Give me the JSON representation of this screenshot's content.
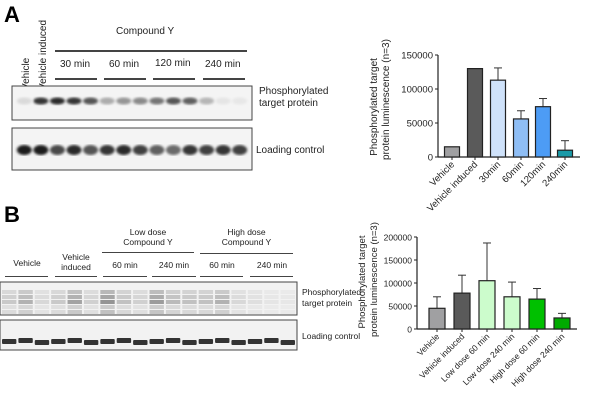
{
  "panel_a": {
    "letter": "A",
    "lane_labels": [
      "Vehicle",
      "Vehicle induced"
    ],
    "group_label": "Compound Y",
    "time_labels": [
      "30 min",
      "60 min",
      "120 min",
      "240 min"
    ],
    "blot_labels": [
      "Phosphorylated",
      "target protein",
      "Loading control"
    ],
    "phospho_band_intensity": [
      0.08,
      0.85,
      0.9,
      0.85,
      0.7,
      0.3,
      0.4,
      0.45,
      0.55,
      0.7,
      0.65,
      0.25,
      0.03,
      0.02
    ],
    "loading_band_intensity": [
      0.95,
      0.95,
      0.75,
      0.9,
      0.7,
      0.85,
      0.9,
      0.8,
      0.65,
      0.6,
      0.85,
      0.8,
      0.85,
      0.8
    ]
  },
  "panel_b": {
    "letter": "B",
    "lane_labels": [
      "Vehicle",
      "Vehicle",
      "induced"
    ],
    "groups": [
      [
        "Low dose",
        "Compound Y"
      ],
      [
        "High dose",
        "Compound Y"
      ]
    ],
    "time_labels": [
      "60 min",
      "240 min",
      "60 min",
      "240 min"
    ],
    "blot_labels": [
      "Phosphorylated",
      "target protein",
      "Loading control"
    ],
    "phospho_band_intensity": [
      0.25,
      0.4,
      0.15,
      0.25,
      0.5,
      0.2,
      0.6,
      0.3,
      0.2,
      0.55,
      0.35,
      0.3,
      0.3,
      0.4,
      0.15,
      0.1,
      0.06,
      0.05
    ]
  },
  "chart_data": [
    {
      "type": "bar",
      "title": "",
      "xlabel": "",
      "ylabel": "Phosphorylated target protein luminescence (n=3)",
      "ylabel_lines": [
        "Phosphorylated target",
        "protein luminescence (n=3)"
      ],
      "categories": [
        "Vehicle",
        "Vehicle induced",
        "30min",
        "60min",
        "120min",
        "240min"
      ],
      "values": [
        15000,
        130000,
        113000,
        56000,
        74000,
        10000
      ],
      "error_upper": [
        15000,
        130000,
        131000,
        68000,
        86000,
        24000
      ],
      "colors": [
        "#a0a0a2",
        "#5a5a5a",
        "#cfe2fa",
        "#8fbef5",
        "#4d9cf5",
        "#1a9aa8"
      ],
      "ylim": [
        0,
        150000
      ],
      "yticks": [
        "0",
        "50000",
        "100000",
        "150000"
      ],
      "ytick_values": [
        0,
        50000,
        100000,
        150000
      ],
      "grid": false
    },
    {
      "type": "bar",
      "title": "",
      "xlabel": "",
      "ylabel": "Phosphorylated target protein luminescence (n=3)",
      "ylabel_lines": [
        "Phosphorylated target",
        "protein luminescence (n=3)"
      ],
      "categories": [
        "Vehicle",
        "Vehicle induced",
        "Low dose 60 min",
        "Low dose 240 min",
        "High dose 60 min",
        "High dose 240 min"
      ],
      "values": [
        45000,
        78000,
        105000,
        70000,
        65000,
        24000
      ],
      "error_upper": [
        70000,
        117000,
        187000,
        102000,
        88000,
        34000
      ],
      "colors": [
        "#a0a0a2",
        "#5a5a5a",
        "#ccfccc",
        "#ccfccc",
        "#00c000",
        "#00aa00"
      ],
      "ylim": [
        0,
        200000
      ],
      "yticks": [
        "0",
        "50000",
        "100000",
        "150000",
        "200000"
      ],
      "ytick_values": [
        0,
        50000,
        100000,
        150000,
        200000
      ],
      "grid": false
    }
  ]
}
